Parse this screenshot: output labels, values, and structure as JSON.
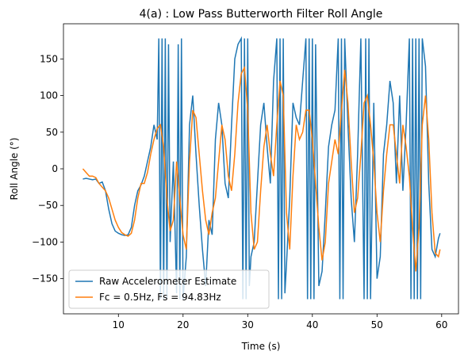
{
  "chart_data": {
    "type": "line",
    "title": "4(a) : Low Pass Butterworth Filter Roll Angle",
    "xlabel": "Time (s)",
    "ylabel": "Roll Angle (°)",
    "xlim": [
      1.5,
      62.6
    ],
    "ylim": [
      -198,
      198
    ],
    "xticks": [
      10,
      20,
      30,
      40,
      50,
      60
    ],
    "yticks": [
      {
        "value": -150,
        "label": "−150"
      },
      {
        "value": -100,
        "label": "−100"
      },
      {
        "value": -50,
        "label": "−50"
      },
      0,
      50,
      100,
      150
    ],
    "legend": "lower left",
    "series": [
      {
        "name": "Raw Accelerometer Estimate",
        "color": "#1f77b4",
        "x": [
          4.5,
          5,
          5.5,
          6,
          6.5,
          7,
          7.5,
          8,
          8.5,
          9,
          9.5,
          10,
          10.5,
          11,
          11.5,
          12,
          12.5,
          13,
          13.5,
          14,
          14.5,
          15,
          15.5,
          16,
          16.25,
          16.5,
          16.75,
          17,
          17.25,
          17.5,
          17.75,
          18,
          18.5,
          19,
          19.25,
          19.5,
          19.75,
          20,
          20.5,
          21,
          21.5,
          22,
          22.5,
          23,
          23.5,
          24,
          24.5,
          25,
          25.5,
          26,
          26.5,
          27,
          27.5,
          28,
          28.5,
          29,
          29.25,
          29.5,
          29.75,
          30,
          30.25,
          30.5,
          31,
          31.5,
          32,
          32.5,
          33,
          33.5,
          34,
          34.5,
          34.75,
          35,
          35.25,
          35.5,
          35.75,
          36,
          36.5,
          37,
          37.5,
          38,
          38.5,
          39,
          39.25,
          39.5,
          39.75,
          40,
          40.25,
          40.5,
          41,
          41.5,
          42,
          42.5,
          43,
          43.5,
          44,
          44.25,
          44.5,
          44.75,
          45,
          45.5,
          46,
          46.5,
          47,
          47.5,
          48,
          48.25,
          48.5,
          48.75,
          49,
          49.5,
          50,
          50.5,
          51,
          51.5,
          52,
          52.5,
          53,
          53.5,
          54,
          54.5,
          55,
          55.25,
          55.5,
          55.75,
          56,
          56.25,
          56.5,
          56.75,
          57,
          57.5,
          58,
          58.5,
          59,
          59.5,
          59.75
        ],
        "values": [
          -14,
          -13,
          -14,
          -15,
          -14,
          -20,
          -18,
          -30,
          -55,
          -75,
          -85,
          -88,
          -90,
          -91,
          -90,
          -80,
          -50,
          -30,
          -22,
          -10,
          10,
          30,
          60,
          40,
          178,
          -178,
          178,
          -178,
          178,
          -178,
          170,
          -100,
          10,
          -170,
          170,
          -178,
          178,
          -178,
          -120,
          60,
          100,
          20,
          -50,
          -110,
          -160,
          -70,
          -90,
          40,
          90,
          60,
          -20,
          -40,
          60,
          150,
          170,
          178,
          -178,
          178,
          -178,
          178,
          -160,
          -120,
          -100,
          -20,
          60,
          90,
          30,
          -20,
          120,
          178,
          -178,
          178,
          -178,
          178,
          -170,
          -130,
          -40,
          90,
          70,
          60,
          120,
          178,
          -178,
          178,
          -178,
          178,
          -178,
          170,
          -160,
          -140,
          -60,
          30,
          60,
          80,
          178,
          -178,
          178,
          -178,
          178,
          60,
          -40,
          -100,
          20,
          178,
          -178,
          178,
          -178,
          178,
          -178,
          90,
          -150,
          -120,
          20,
          60,
          120,
          90,
          -20,
          100,
          -30,
          60,
          178,
          -178,
          178,
          -178,
          178,
          -178,
          178,
          -178,
          178,
          140,
          -20,
          -110,
          -120,
          -95,
          -88
        ]
      },
      {
        "name": "Fc = 0.5Hz, Fs = 94.83Hz",
        "color": "#ff7f0e",
        "x": [
          4.5,
          5,
          5.5,
          6,
          6.5,
          7,
          7.5,
          8,
          8.5,
          9,
          9.5,
          10,
          10.5,
          11,
          11.5,
          12,
          12.5,
          13,
          13.5,
          14,
          14.5,
          15,
          15.5,
          16,
          16.5,
          17,
          17.5,
          18,
          18.5,
          19,
          19.5,
          20,
          20.5,
          21,
          21.5,
          22,
          22.5,
          23,
          23.5,
          24,
          24.5,
          25,
          25.5,
          26,
          26.5,
          27,
          27.5,
          28,
          28.5,
          29,
          29.5,
          30,
          30.5,
          31,
          31.5,
          32,
          32.5,
          33,
          33.5,
          34,
          34.5,
          35,
          35.5,
          36,
          36.5,
          37,
          37.5,
          38,
          38.5,
          39,
          39.5,
          40,
          40.5,
          41,
          41.5,
          42,
          42.5,
          43,
          43.5,
          44,
          44.5,
          45,
          45.5,
          46,
          46.5,
          47,
          47.5,
          48,
          48.5,
          49,
          49.5,
          50,
          50.5,
          51,
          51.5,
          52,
          52.5,
          53,
          53.5,
          54,
          54.5,
          55,
          55.5,
          56,
          56.5,
          57,
          57.5,
          58,
          58.5,
          59,
          59.5,
          59.75
        ],
        "values": [
          0,
          -5,
          -10,
          -10,
          -12,
          -20,
          -25,
          -30,
          -40,
          -55,
          -70,
          -80,
          -87,
          -90,
          -92,
          -88,
          -70,
          -40,
          -20,
          -20,
          -5,
          20,
          40,
          55,
          60,
          30,
          -40,
          -85,
          -70,
          10,
          -40,
          -90,
          -110,
          10,
          80,
          70,
          20,
          -30,
          -70,
          -90,
          -60,
          -40,
          10,
          60,
          40,
          -10,
          -30,
          20,
          90,
          130,
          138,
          80,
          -60,
          -110,
          -100,
          -30,
          30,
          60,
          20,
          -10,
          60,
          120,
          100,
          -60,
          -110,
          -10,
          60,
          40,
          50,
          80,
          80,
          40,
          -20,
          -80,
          -125,
          -100,
          -20,
          10,
          40,
          20,
          80,
          135,
          90,
          10,
          -60,
          -40,
          20,
          90,
          100,
          60,
          10,
          -60,
          -100,
          -30,
          20,
          60,
          60,
          20,
          -20,
          60,
          30,
          -10,
          -80,
          -140,
          -80,
          60,
          100,
          40,
          -60,
          -115,
          -120,
          -110
        ]
      }
    ]
  }
}
